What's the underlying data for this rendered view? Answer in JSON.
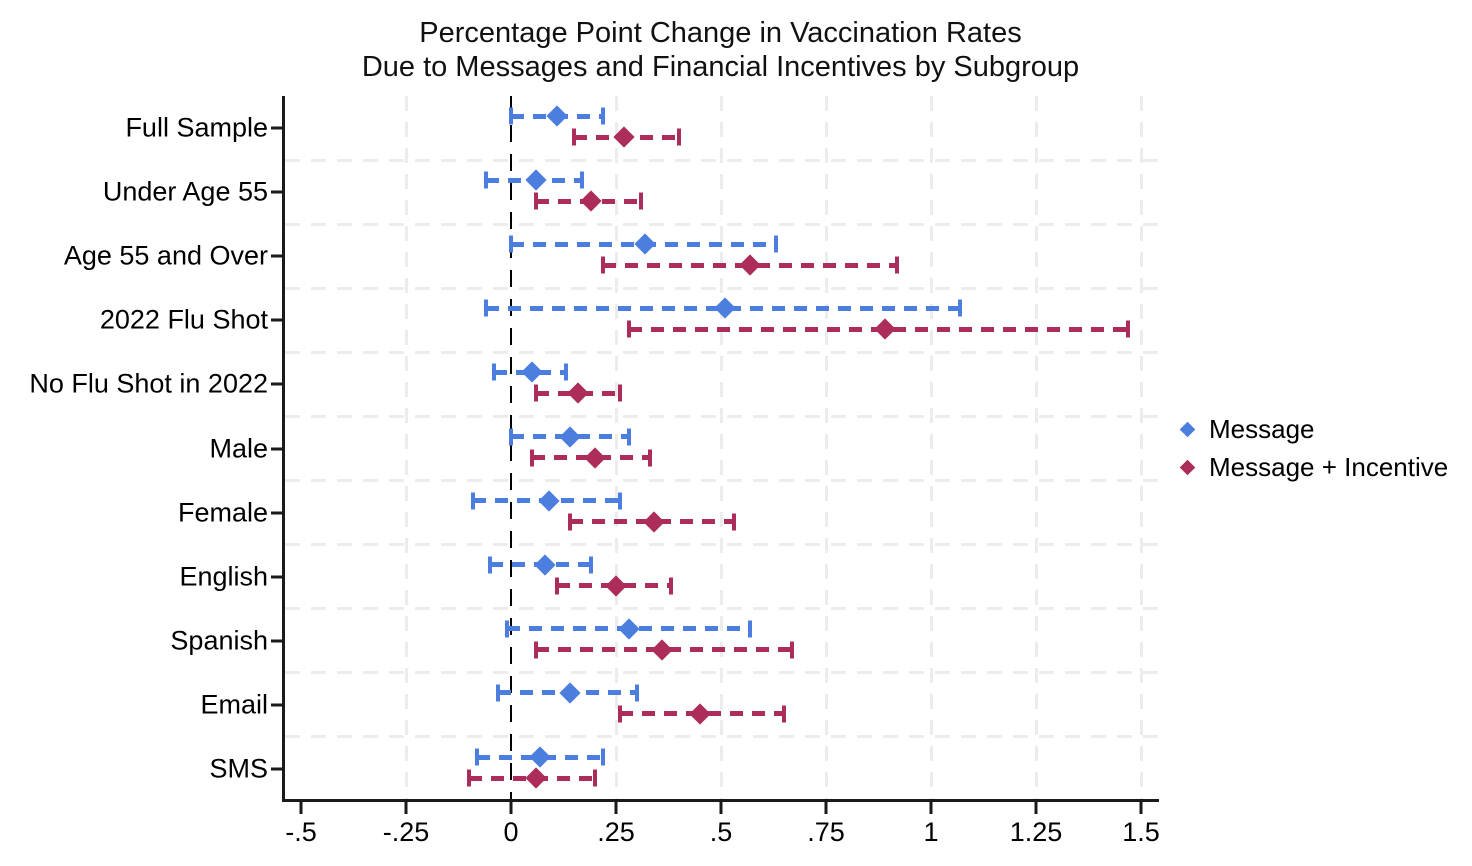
{
  "figure": {
    "title_line1": "Percentage Point Change in Vaccination Rates",
    "title_line2": "Due to Messages and Financial Incentives by Subgroup"
  },
  "colors": {
    "message": "#4C7EE0",
    "incentive": "#AC2C5C",
    "grid": "#ECECEC",
    "axis": "#1A1A1A",
    "zero_line": "#000000",
    "background": "#FFFFFF"
  },
  "legend": {
    "items": [
      {
        "label": "Message",
        "color": "#4C7EE0",
        "marker": "diamond"
      },
      {
        "label": "Message + Incentive",
        "color": "#AC2C5C",
        "marker": "diamond"
      }
    ],
    "position": "right-middle"
  },
  "chart_data": {
    "type": "scatter",
    "subtype": "coefficient-plot-with-confidence-intervals",
    "title": "Percentage Point Change in Vaccination Rates Due to Messages and Financial Incentives by Subgroup",
    "xlabel": "",
    "ylabel": "",
    "xlim": [
      -0.55,
      1.54
    ],
    "grid": {
      "style": "dashed",
      "vertical_at": [
        -0.25,
        0.25,
        0.5,
        0.75,
        1.0,
        1.25,
        1.5
      ],
      "horizontal_separators_between_categories": true
    },
    "zero_line": {
      "value": 0,
      "style": "dashed",
      "color": "#000000"
    },
    "x_ticks": [
      {
        "value": -0.5,
        "label": "-.5"
      },
      {
        "value": -0.25,
        "label": "-.25"
      },
      {
        "value": 0,
        "label": "0"
      },
      {
        "value": 0.25,
        "label": ".25"
      },
      {
        "value": 0.5,
        "label": ".5"
      },
      {
        "value": 0.75,
        "label": ".75"
      },
      {
        "value": 1,
        "label": "1"
      },
      {
        "value": 1.25,
        "label": "1.25"
      },
      {
        "value": 1.5,
        "label": "1.5"
      }
    ],
    "categories": [
      "Full Sample",
      "Under Age 55",
      "Age 55 and Over",
      "2022 Flu Shot",
      "No Flu Shot in 2022",
      "Male",
      "Female",
      "English",
      "Spanish",
      "Email",
      "SMS"
    ],
    "series": [
      {
        "name": "Message",
        "color": "#4C7EE0",
        "marker": "diamond",
        "points": [
          {
            "category": "Full Sample",
            "estimate": 0.11,
            "ci_low": 0.0,
            "ci_high": 0.22
          },
          {
            "category": "Under Age 55",
            "estimate": 0.06,
            "ci_low": -0.06,
            "ci_high": 0.17
          },
          {
            "category": "Age 55 and Over",
            "estimate": 0.32,
            "ci_low": 0.0,
            "ci_high": 0.63
          },
          {
            "category": "2022 Flu Shot",
            "estimate": 0.51,
            "ci_low": -0.06,
            "ci_high": 1.07
          },
          {
            "category": "No Flu Shot in 2022",
            "estimate": 0.05,
            "ci_low": -0.04,
            "ci_high": 0.13
          },
          {
            "category": "Male",
            "estimate": 0.14,
            "ci_low": 0.0,
            "ci_high": 0.28
          },
          {
            "category": "Female",
            "estimate": 0.09,
            "ci_low": -0.09,
            "ci_high": 0.26
          },
          {
            "category": "English",
            "estimate": 0.08,
            "ci_low": -0.05,
            "ci_high": 0.19
          },
          {
            "category": "Spanish",
            "estimate": 0.28,
            "ci_low": -0.01,
            "ci_high": 0.57
          },
          {
            "category": "Email",
            "estimate": 0.14,
            "ci_low": -0.03,
            "ci_high": 0.3
          },
          {
            "category": "SMS",
            "estimate": 0.07,
            "ci_low": -0.08,
            "ci_high": 0.22
          }
        ]
      },
      {
        "name": "Message + Incentive",
        "color": "#AC2C5C",
        "marker": "diamond",
        "points": [
          {
            "category": "Full Sample",
            "estimate": 0.27,
            "ci_low": 0.15,
            "ci_high": 0.4
          },
          {
            "category": "Under Age 55",
            "estimate": 0.19,
            "ci_low": 0.06,
            "ci_high": 0.31
          },
          {
            "category": "Age 55 and Over",
            "estimate": 0.57,
            "ci_low": 0.22,
            "ci_high": 0.92
          },
          {
            "category": "2022 Flu Shot",
            "estimate": 0.89,
            "ci_low": 0.28,
            "ci_high": 1.47
          },
          {
            "category": "No Flu Shot in 2022",
            "estimate": 0.16,
            "ci_low": 0.06,
            "ci_high": 0.26
          },
          {
            "category": "Male",
            "estimate": 0.2,
            "ci_low": 0.05,
            "ci_high": 0.33
          },
          {
            "category": "Female",
            "estimate": 0.34,
            "ci_low": 0.14,
            "ci_high": 0.53
          },
          {
            "category": "English",
            "estimate": 0.25,
            "ci_low": 0.11,
            "ci_high": 0.38
          },
          {
            "category": "Spanish",
            "estimate": 0.36,
            "ci_low": 0.06,
            "ci_high": 0.67
          },
          {
            "category": "Email",
            "estimate": 0.45,
            "ci_low": 0.26,
            "ci_high": 0.65
          },
          {
            "category": "SMS",
            "estimate": 0.06,
            "ci_low": -0.1,
            "ci_high": 0.2
          }
        ]
      }
    ],
    "legend_entries": [
      "Message",
      "Message + Incentive"
    ]
  }
}
